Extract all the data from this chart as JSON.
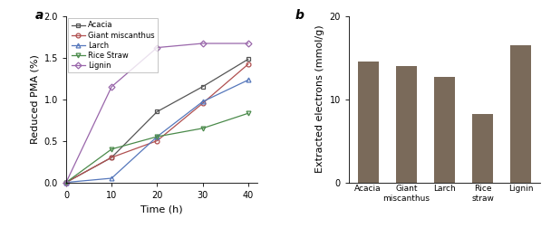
{
  "line_time": [
    0,
    10,
    20,
    30,
    40
  ],
  "acacia": [
    0.0,
    0.3,
    0.85,
    1.15,
    1.48
  ],
  "giant_miscanthus": [
    0.0,
    0.3,
    0.5,
    0.95,
    1.42
  ],
  "larch": [
    0.0,
    0.05,
    0.55,
    0.97,
    1.23
  ],
  "rice_straw": [
    0.0,
    0.4,
    0.55,
    0.65,
    0.83
  ],
  "lignin": [
    0.0,
    1.15,
    1.62,
    1.67,
    1.67
  ],
  "line_colors": [
    "#555555",
    "#b05050",
    "#5577bb",
    "#4a8a4a",
    "#9966aa"
  ],
  "line_labels": [
    "Acacia",
    "Giant miscanthus",
    "Larch",
    "Rice Straw",
    "Lignin"
  ],
  "line_markers": [
    "s",
    "o",
    "^",
    "v",
    "D"
  ],
  "bar_categories": [
    "Acacia",
    "Giant\nmiscanthus",
    "Larch",
    "Rice\nstraw",
    "Lignin"
  ],
  "bar_values": [
    14.5,
    14.0,
    12.7,
    8.2,
    16.5
  ],
  "bar_color": "#7a6a5a",
  "xlabel_a": "Time (h)",
  "ylabel_a": "Reduced PMA (%)",
  "ylabel_b": "Extracted electrons (mmol/g)",
  "ylim_a": [
    0.0,
    2.0
  ],
  "ylim_b": [
    0,
    20
  ],
  "label_a": "a",
  "label_b": "b",
  "yticks_a": [
    0.0,
    0.5,
    1.0,
    1.5,
    2.0
  ],
  "yticks_b": [
    0,
    10,
    20
  ],
  "xticks_a": [
    0,
    10,
    20,
    30,
    40
  ]
}
